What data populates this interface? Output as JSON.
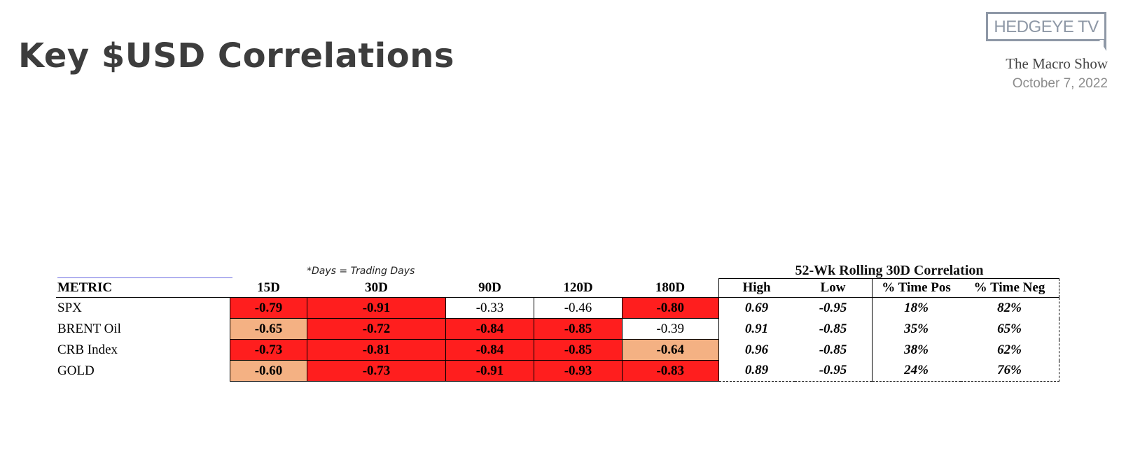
{
  "header": {
    "title": "Key $USD Correlations",
    "logo_text": "HEDGEYE TV",
    "show_name": "The Macro Show",
    "date": "October 7, 2022"
  },
  "note": "*Days = Trading Days",
  "rolling_title": "52-Wk Rolling 30D Correlation",
  "columns": {
    "metric": "METRIC",
    "d15": "15D",
    "d30": "30D",
    "d90": "90D",
    "d120": "120D",
    "d180": "180D",
    "high": "High",
    "low": "Low",
    "pos": "% Time Pos",
    "neg": "% Time Neg"
  },
  "colors": {
    "strong_negative": "#ff1e1e",
    "moderate_negative": "#f4b183",
    "weak": "#ffffff"
  },
  "rows": [
    {
      "metric": "SPX",
      "d15": "-0.79",
      "d30": "-0.91",
      "d90": "-0.33",
      "d120": "-0.46",
      "d180": "-0.80",
      "high": "0.69",
      "low": "-0.95",
      "pos": "18%",
      "neg": "82%"
    },
    {
      "metric": "BRENT Oil",
      "d15": "-0.65",
      "d30": "-0.72",
      "d90": "-0.84",
      "d120": "-0.85",
      "d180": "-0.39",
      "high": "0.91",
      "low": "-0.85",
      "pos": "35%",
      "neg": "65%"
    },
    {
      "metric": "CRB Index",
      "d15": "-0.73",
      "d30": "-0.81",
      "d90": "-0.84",
      "d120": "-0.85",
      "d180": "-0.64",
      "high": "0.96",
      "low": "-0.85",
      "pos": "38%",
      "neg": "62%"
    },
    {
      "metric": "GOLD",
      "d15": "-0.60",
      "d30": "-0.73",
      "d90": "-0.91",
      "d120": "-0.93",
      "d180": "-0.83",
      "high": "0.89",
      "low": "-0.95",
      "pos": "24%",
      "neg": "76%"
    }
  ]
}
